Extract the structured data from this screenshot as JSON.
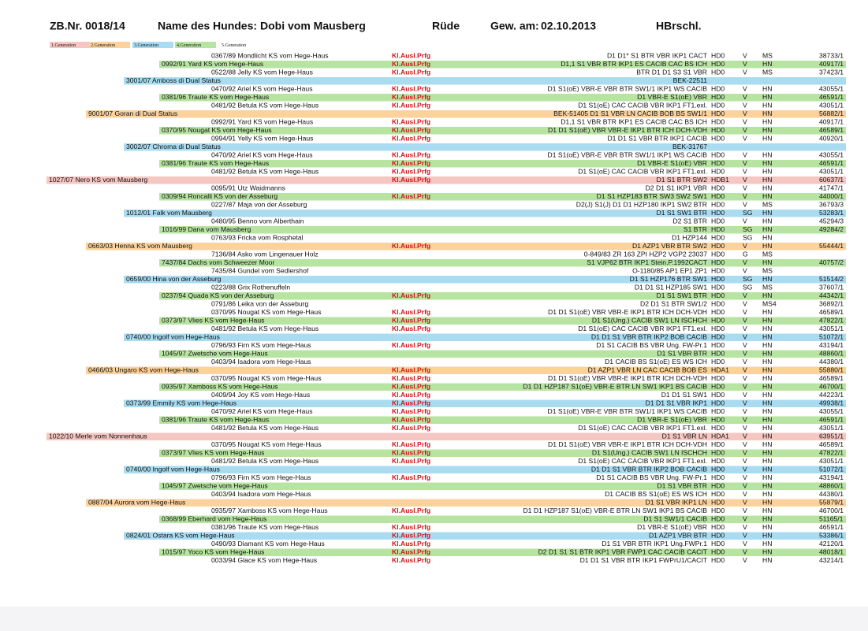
{
  "header": {
    "zb": "ZB.Nr. 0018/14",
    "name_label": "Name des Hundes:",
    "name": "Dobi vom Mausberg",
    "sex": "Rüde",
    "born_label": "Gew. am:",
    "born": "02.10.2013",
    "breed": "HBrschl."
  },
  "legend": [
    {
      "label": "1.Generation",
      "color": "#f6c6c2"
    },
    {
      "label": "2.Generation",
      "color": "#fbd29c"
    },
    {
      "label": "3.Generation",
      "color": "#a9dcf1"
    },
    {
      "label": "4.Generation",
      "color": "#b8e4a2"
    },
    {
      "label": "5.Generation",
      "color": "#ffffff"
    }
  ],
  "rows": [
    {
      "gen": 5,
      "name": "0367/89 Mondlicht KS vom Hege-Haus",
      "flag": "Kl.Ausl.Prfg",
      "result": "D1 D1* S1 BTR VBR IKP1 CACT",
      "hd": "HD0",
      "v": "V",
      "grade": "MS",
      "nr": "38733/1"
    },
    {
      "gen": 4,
      "name": "0992/91 Yard KS vom Hege-Haus",
      "flag": "Kl.Ausl.Prfg",
      "result": "D1,1 S1 VBR BTR IKP1 ES CACIB CAC BS ICH",
      "hd": "HD0",
      "v": "V",
      "grade": "HN",
      "nr": "40917/1"
    },
    {
      "gen": 5,
      "name": "0522/88 Jelly KS vom Hege-Haus",
      "flag": "Kl.Ausl.Prfg",
      "result": "BTR D1 D1 S3 S1 VBR",
      "hd": "HD0",
      "v": "V",
      "grade": "MS",
      "nr": "37423/1"
    },
    {
      "gen": 3,
      "name": "3001/07 Amboss di Dual Status",
      "result": "BEK-22511"
    },
    {
      "gen": 5,
      "name": "0470/92 Ariel KS vom Hege-Haus",
      "flag": "Kl.Ausl.Prfg",
      "result": "D1 S1(oE) VBR-E VBR BTR SW1/1 IKP1 WS CACIB",
      "hd": "HD0",
      "v": "V",
      "grade": "HN",
      "nr": "43055/1"
    },
    {
      "gen": 4,
      "name": "0381/96 Traute KS vom Hege-Haus",
      "flag": "Kl.Ausl.Prfg",
      "result": "D1 VBR-E S1(oE) VBR",
      "hd": "HD0",
      "v": "V",
      "grade": "HN",
      "nr": "46591/1"
    },
    {
      "gen": 5,
      "name": "0481/92 Betula KS vom Hege-Haus",
      "flag": "Kl.Ausl.Prfg",
      "result": "D1 S1(oE) CAC CACIB VBR IKP1 FT1.exl.",
      "hd": "HD0",
      "v": "V",
      "grade": "HN",
      "nr": "43051/1"
    },
    {
      "gen": 2,
      "name": "9001/07 Goran di Dual Status",
      "result": "BEK-51405 D1 S1 VBR LN CACIB BOB BS SW1/1",
      "hd": "HD0",
      "v": "V",
      "grade": "HN",
      "nr": "56882/1"
    },
    {
      "gen": 5,
      "name": "0992/91 Yard KS vom Hege-Haus",
      "flag": "Kl.Ausl.Prfg",
      "result": "D1,1 S1 VBR BTR IKP1 ES CACIB CAC BS ICH",
      "hd": "HD0",
      "v": "V",
      "grade": "HN",
      "nr": "40917/1"
    },
    {
      "gen": 4,
      "name": "0370/95 Nougat KS vom Hege-Haus",
      "flag": "Kl.Ausl.Prfg",
      "result": "D1 D1 S1(oE) VBR VBR-E IKP1 BTR ICH DCH-VDH",
      "hd": "HD0",
      "v": "V",
      "grade": "HN",
      "nr": "46589/1"
    },
    {
      "gen": 5,
      "name": "0994/91 Yelly KS vom Hege-Haus",
      "flag": "Kl.Ausl.Prfg",
      "result": "D1 D1 S1 VBR BTR IKP1 CACIB",
      "hd": "HD0",
      "v": "V",
      "grade": "HN",
      "nr": "40920/1"
    },
    {
      "gen": 3,
      "name": "3002/07 Chroma di Dual Status",
      "result": "BEK-31767"
    },
    {
      "gen": 5,
      "name": "0470/92 Ariel KS vom Hege-Haus",
      "flag": "Kl.Ausl.Prfg",
      "result": "D1 S1(oE) VBR-E VBR BTR SW1/1 IKP1 WS CACIB",
      "hd": "HD0",
      "v": "V",
      "grade": "HN",
      "nr": "43055/1"
    },
    {
      "gen": 4,
      "name": "0381/96 Traute KS vom Hege-Haus",
      "flag": "Kl.Ausl.Prfg",
      "result": "D1 VBR-E S1(oE) VBR",
      "hd": "HD0",
      "v": "V",
      "grade": "HN",
      "nr": "46591/1"
    },
    {
      "gen": 5,
      "name": "0481/92 Betula KS vom Hege-Haus",
      "flag": "Kl.Ausl.Prfg",
      "result": "D1 S1(oE) CAC CACIB VBR IKP1 FT1.exl.",
      "hd": "HD0",
      "v": "V",
      "grade": "HN",
      "nr": "43051/1"
    },
    {
      "gen": 1,
      "name": "1027/07 Nero KS vom Mausberg",
      "flag": "Kl.Ausl.Prfg",
      "result": "D1 S1 BTR SW2",
      "hd": "HDB1",
      "v": "V",
      "grade": "HN",
      "nr": "60637/1"
    },
    {
      "gen": 5,
      "name": "0095/91 Utz Waidmanns",
      "result": "D2 D1 S1 IKP1 VBR",
      "hd": "HD0",
      "v": "V",
      "grade": "HN",
      "nr": "41747/1"
    },
    {
      "gen": 4,
      "name": "0309/94 Roncalli KS von der Asseburg",
      "flag": "Kl.Ausl.Prfg",
      "result": "D1 S1 HZP183 BTR SW3 SW2 SW1",
      "hd": "HD0",
      "v": "V",
      "grade": "HN",
      "nr": "44000/1"
    },
    {
      "gen": 5,
      "name": "0227/87 Maja von der Asseburg",
      "result": "D2(J) S1(J) D1 D1 HZP180 IKP1 SW2 BTR",
      "hd": "HD0",
      "v": "V",
      "grade": "MS",
      "nr": "36793/3"
    },
    {
      "gen": 3,
      "name": "1012/01 Falk vom Mausberg",
      "result": "D1 S1 SW1 BTR",
      "hd": "HD0",
      "v": "SG",
      "grade": "HN",
      "nr": "53283/1"
    },
    {
      "gen": 5,
      "name": "0480/95 Benno vom Alberthain",
      "result": "D2 S1 BTR",
      "hd": "HD0",
      "v": "V",
      "grade": "HN",
      "nr": "45294/3"
    },
    {
      "gen": 4,
      "name": "1016/99 Dana vom Mausberg",
      "result": "S1 BTR",
      "hd": "HD0",
      "v": "SG",
      "grade": "HN",
      "nr": "49284/2"
    },
    {
      "gen": 5,
      "name": "0763/93 Fricka vom Rosphetal",
      "result": "D1 HZP144",
      "hd": "HD0",
      "v": "SG",
      "grade": "HN"
    },
    {
      "gen": 2,
      "name": "0663/03 Henna KS vom Mausberg",
      "flag": "Kl.Ausl.Prfg",
      "result": "D1 AZP1 VBR BTR SW2",
      "hd": "HD0",
      "v": "V",
      "grade": "HN",
      "nr": "55444/1"
    },
    {
      "gen": 5,
      "name": "7136/84 Asko vom Lingenauer Holz",
      "result": "0-849/83 ZR 163 ZPI HZP2 VGP2 23037",
      "hd": "HD0",
      "v": "G",
      "grade": "MS"
    },
    {
      "gen": 4,
      "name": "7437/84 Dachs vom Schweezer Moor",
      "result": "S1 VJP62 BTR IKP1 Stein.P.1992CACT",
      "hd": "HD0",
      "v": "V",
      "grade": "HN",
      "nr": "40757/2"
    },
    {
      "gen": 5,
      "name": "7435/84 Gundel vom Sedlershof",
      "result": "O-1180/85 AP1 EP1 ZP1",
      "hd": "HD0",
      "v": "V",
      "grade": "MS"
    },
    {
      "gen": 3,
      "name": "0659/00 Hina von der Asseburg",
      "result": "D1 S1 HZP176 BTR SW1",
      "hd": "HD0",
      "v": "SG",
      "grade": "HN",
      "nr": "51514/2"
    },
    {
      "gen": 5,
      "name": "0223/88 Grix  Rothenuffeln",
      "result": "D1 D1 S1 HZP185 SW1",
      "hd": "HD0",
      "v": "SG",
      "grade": "MS",
      "nr": "37607/1"
    },
    {
      "gen": 4,
      "name": "0237/94 Quada KS von der Asseburg",
      "flag": "Kl.Ausl.Prfg",
      "result": "D1 S1 SW1 BTR",
      "hd": "HD0",
      "v": "V",
      "grade": "HN",
      "nr": "44342/1"
    },
    {
      "gen": 5,
      "name": "0791/86 Leika von der Asseburg",
      "result": "D2 D1 S1 BTR SW1/2",
      "hd": "HD0",
      "v": "V",
      "grade": "MS4",
      "nr": "36892/1"
    },
    {
      "gen": 5,
      "name": "0370/95 Nougat KS vom Hege-Haus",
      "flag": "Kl.Ausl.Prfg",
      "result": "D1 D1 S1(oE) VBR VBR-E IKP1 BTR ICH DCH-VDH",
      "hd": "HD0",
      "v": "V",
      "grade": "HN",
      "nr": "46589/1"
    },
    {
      "gen": 4,
      "name": "0373/97 Vlies KS vom Hege-Haus",
      "flag": "Kl.Ausl.Prfg",
      "result": "D1 S1(Ung.) CACIB SW1 LN ISCHCH",
      "hd": "HD0",
      "v": "V",
      "grade": "HN",
      "nr": "47822/1"
    },
    {
      "gen": 5,
      "name": "0481/92 Betula KS vom Hege-Haus",
      "flag": "Kl.Ausl.Prfg",
      "result": "D1 S1(oE) CAC CACIB VBR IKP1 FT1.exl.",
      "hd": "HD0",
      "v": "V",
      "grade": "HN",
      "nr": "43051/1"
    },
    {
      "gen": 3,
      "name": "0740/00 Ingolf vom Hege-Haus",
      "result": "D1 D1 S1 VBR BTR IKP2 BOB CACIB",
      "hd": "HD0",
      "v": "V",
      "grade": "HN",
      "nr": "51072/1"
    },
    {
      "gen": 5,
      "name": "0796/93 Firn KS vom Hege-Haus",
      "flag": "Kl.Ausl.Prfg",
      "result": "D1 S1 CACIB BS VBR Ung. FW-Pr.1",
      "hd": "HD0",
      "v": "V",
      "grade": "HN",
      "nr": "43194/1"
    },
    {
      "gen": 4,
      "name": "1045/97 Zwetsche vom Hege-Haus",
      "result": "D1 S1 VBR BTR",
      "hd": "HD0",
      "v": "V",
      "grade": "HN",
      "nr": "48860/1"
    },
    {
      "gen": 5,
      "name": "0403/94 Isadora vom Hege-Haus",
      "result": "D1 CACIB BS  S1(oE) ES WS ICH",
      "hd": "HD0",
      "v": "V",
      "grade": "HN",
      "nr": "44380/1"
    },
    {
      "gen": 2,
      "name": "0466/03 Ungaro KS vom Hege-Haus",
      "flag": "Kl.Ausl.Prfg",
      "result": "D1 AZP1 VBR LN CAC CACIB BOB ES",
      "hd": "HDA1",
      "v": "V",
      "grade": "HN",
      "nr": "55880/1"
    },
    {
      "gen": 5,
      "name": "0370/95 Nougat KS vom Hege-Haus",
      "flag": "Kl.Ausl.Prfg",
      "result": "D1 D1 S1(oE) VBR VBR-E IKP1 BTR ICH DCH-VDH",
      "hd": "HD0",
      "v": "V",
      "grade": "HN",
      "nr": "46589/1"
    },
    {
      "gen": 4,
      "name": "0935/97 Xamboss KS vom Hege-Haus",
      "flag": "Kl.Ausl.Prfg",
      "result": "D1 D1 HZP187 S1(oE) VBR-E BTR LN SW1 IKP1 BS CACIB",
      "hd": "HD0",
      "v": "V",
      "grade": "HN",
      "nr": "46700/1"
    },
    {
      "gen": 5,
      "name": "0409/94 Joy KS vom Hege-Haus",
      "flag": "Kl.Ausl.Prfg",
      "result": "D1 D1 S1 SW1",
      "hd": "HD0",
      "v": "V",
      "grade": "HN",
      "nr": "44223/1"
    },
    {
      "gen": 3,
      "name": "0373/99 Emmily KS vom Hege-Haus",
      "flag": "Kl.Ausl.Prfg",
      "result": "D1 D1 S1 VBR IKP1",
      "hd": "HD0",
      "v": "V",
      "grade": "HN",
      "nr": "49938/1"
    },
    {
      "gen": 5,
      "name": "0470/92 Ariel KS vom Hege-Haus",
      "flag": "Kl.Ausl.Prfg",
      "result": "D1 S1(oE) VBR-E VBR BTR SW1/1 IKP1 WS CACIB",
      "hd": "HD0",
      "v": "V",
      "grade": "HN",
      "nr": "43055/1"
    },
    {
      "gen": 4,
      "name": "0381/96 Traute KS vom Hege-Haus",
      "flag": "Kl.Ausl.Prfg",
      "result": "D1 VBR-E S1(oE) VBR",
      "hd": "HD0",
      "v": "V",
      "grade": "HN",
      "nr": "46591/1"
    },
    {
      "gen": 5,
      "name": "0481/92 Betula KS vom Hege-Haus",
      "flag": "Kl.Ausl.Prfg",
      "result": "D1 S1(oE) CAC CACIB VBR IKP1 FT1.exl.",
      "hd": "HD0",
      "v": "V",
      "grade": "HN",
      "nr": "43051/1"
    },
    {
      "gen": 1,
      "name": "1022/10 Merle vom Nonnenhaus",
      "result": "D1 S1 VBR LN",
      "hd": "HDA1",
      "v": "V",
      "grade": "HN",
      "nr": "63951/1"
    },
    {
      "gen": 5,
      "name": "0370/95 Nougat KS vom Hege-Haus",
      "flag": "Kl.Ausl.Prfg",
      "result": "D1 D1 S1(oE) VBR VBR-E IKP1 BTR ICH DCH-VDH",
      "hd": "HD0",
      "v": "V",
      "grade": "HN",
      "nr": "46589/1"
    },
    {
      "gen": 4,
      "name": "0373/97 Vlies KS vom Hege-Haus",
      "flag": "Kl.Ausl.Prfg",
      "result": "D1 S1(Ung.) CACIB SW1 LN ISCHCH",
      "hd": "HD0",
      "v": "V",
      "grade": "HN",
      "nr": "47822/1"
    },
    {
      "gen": 5,
      "name": "0481/92 Betula KS vom Hege-Haus",
      "flag": "Kl.Ausl.Prfg",
      "result": "D1 S1(oE) CAC CACIB VBR IKP1 FT1.exl.",
      "hd": "HD0",
      "v": "V",
      "grade": "HN",
      "nr": "43051/1"
    },
    {
      "gen": 3,
      "name": "0740/00 Ingolf vom Hege-Haus",
      "result": "D1 D1 S1 VBR BTR IKP2 BOB CACIB",
      "hd": "HD0",
      "v": "V",
      "grade": "HN",
      "nr": "51072/1"
    },
    {
      "gen": 5,
      "name": "0796/93 Firn KS vom Hege-Haus",
      "flag": "Kl.Ausl.Prfg",
      "result": "D1 S1 CACIB BS VBR Ung. FW-Pr.1",
      "hd": "HD0",
      "v": "V",
      "grade": "HN",
      "nr": "43194/1"
    },
    {
      "gen": 4,
      "name": "1045/97 Zwetsche vom Hege-Haus",
      "result": "D1 S1 VBR BTR",
      "hd": "HD0",
      "v": "V",
      "grade": "HN",
      "nr": "48860/1"
    },
    {
      "gen": 5,
      "name": "0403/94 Isadora vom Hege-Haus",
      "result": "D1 CACIB BS  S1(oE) ES WS ICH",
      "hd": "HD0",
      "v": "V",
      "grade": "HN",
      "nr": "44380/1"
    },
    {
      "gen": 2,
      "name": "0887/04 Aurora vom Hege-Haus",
      "result": "D1 S1 VBR IKP1 LN",
      "hd": "HD0",
      "v": "V",
      "grade": "HN",
      "nr": "55879/1"
    },
    {
      "gen": 5,
      "name": "0935/97 Xamboss KS vom Hege-Haus",
      "flag": "Kl.Ausl.Prfg",
      "result": "D1 D1 HZP187 S1(oE) VBR-E BTR LN SW1 IKP1 BS CACIB",
      "hd": "HD0",
      "v": "V",
      "grade": "HN",
      "nr": "46700/1"
    },
    {
      "gen": 4,
      "name": "0368/99 Eberhard vom Hege-Haus",
      "result": "D1 S1  SW1/1 CACIB",
      "hd": "HD0",
      "v": "V",
      "grade": "HN",
      "nr": "51165/1"
    },
    {
      "gen": 5,
      "name": "0381/96 Traute KS vom Hege-Haus",
      "flag": "Kl.Ausl.Prfg",
      "result": "D1 VBR-E S1(oE) VBR",
      "hd": "HD0",
      "v": "V",
      "grade": "HN",
      "nr": "46591/1"
    },
    {
      "gen": 3,
      "name": "0824/01 Ostara KS vom Hege-Haus",
      "flag": "Kl.Ausl.Prfg",
      "result": "D1 AZP1 VBR BTR",
      "hd": "HD0",
      "v": "V",
      "grade": "HN",
      "nr": "53386/1"
    },
    {
      "gen": 5,
      "name": "0490/93 Diamant KS vom Hege-Haus",
      "flag": "Kl.Ausl.Prfg",
      "result": "D1 S1 VBR BTR IKP1  Ung.FWPr.1",
      "hd": "HD0",
      "v": "V",
      "grade": "HN",
      "nr": "42120/1"
    },
    {
      "gen": 4,
      "name": "1015/97 Yoco KS vom Hege-Haus",
      "flag": "Kl.Ausl.Prfg",
      "result": "D2 D1 S1 S1 BTR IKP1 VBR FWP1 CAC CACIB CACIT",
      "hd": "HD0",
      "v": "V",
      "grade": "HN",
      "nr": "48018/1"
    },
    {
      "gen": 5,
      "name": "0033/94 Glace KS vom Hege-Haus",
      "flag": "Kl.Ausl.Prfg",
      "result": "D1 D1 S1 VBR BTR IKP1 FWPrU1/CACIT",
      "hd": "HD0",
      "v": "V",
      "grade": "HN",
      "nr": "43214/1"
    }
  ]
}
